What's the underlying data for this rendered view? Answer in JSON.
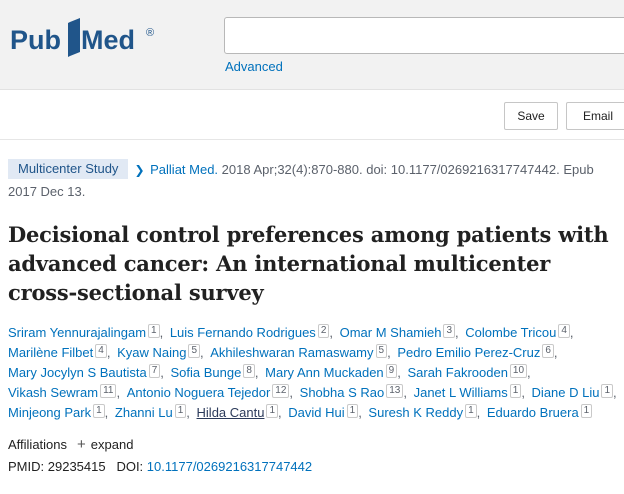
{
  "header": {
    "logo_text_pub": "Pub",
    "logo_text_med": "Med",
    "logo_reg": "®",
    "search": {
      "value": "",
      "placeholder": ""
    },
    "advanced_label": "Advanced"
  },
  "toolbar": {
    "save_label": "Save",
    "email_label": "Email"
  },
  "article": {
    "badge": "Multicenter Study",
    "journal": "Palliat Med.",
    "citation": " 2018 Apr;32(4):870-880. doi: 10.1177/0269216317747442. Epub 2017 Dec 13.",
    "title": "Decisional control preferences among patients with advanced cancer: An international multicenter cross-sectional survey",
    "authors": [
      {
        "name": "Sriram Yennurajalingam",
        "aff": "1"
      },
      {
        "name": "Luis Fernando Rodrigues",
        "aff": "2"
      },
      {
        "name": "Omar M Shamieh",
        "aff": "3"
      },
      {
        "name": "Colombe Tricou",
        "aff": "4"
      },
      {
        "name": "Marilène Filbet",
        "aff": "4"
      },
      {
        "name": "Kyaw Naing",
        "aff": "5"
      },
      {
        "name": "Akhileshwaran Ramaswamy",
        "aff": "5"
      },
      {
        "name": "Pedro Emilio Perez-Cruz",
        "aff": "6"
      },
      {
        "name": "Mary Jocylyn S Bautista",
        "aff": "7"
      },
      {
        "name": "Sofia Bunge",
        "aff": "8"
      },
      {
        "name": "Mary Ann Muckaden",
        "aff": "9"
      },
      {
        "name": "Sarah Fakrooden",
        "aff": "10"
      },
      {
        "name": "Vikash Sewram",
        "aff": "11"
      },
      {
        "name": "Antonio Noguera Tejedor",
        "aff": "12"
      },
      {
        "name": "Shobha S Rao",
        "aff": "13"
      },
      {
        "name": "Janet L Williams",
        "aff": "1"
      },
      {
        "name": "Diane D Liu",
        "aff": "1"
      },
      {
        "name": "Minjeong Park",
        "aff": "1"
      },
      {
        "name": "Zhanni Lu",
        "aff": "1"
      },
      {
        "name": "Hilda Cantu",
        "aff": "1"
      },
      {
        "name": "David Hui",
        "aff": "1"
      },
      {
        "name": "Suresh K Reddy",
        "aff": "1"
      },
      {
        "name": "Eduardo Bruera",
        "aff": "1"
      }
    ],
    "affiliations_label": "Affiliations",
    "expand_label": "expand",
    "pmid_label": "PMID:",
    "pmid_value": "29235415",
    "doi_label": "DOI:",
    "doi_value": "10.1177/0269216317747442"
  },
  "colors": {
    "brand_blue": "#20558a",
    "link_blue": "#0071bc",
    "badge_bg": "#e1e9f4"
  },
  "icons": {
    "logo": "pubmed-book-icon",
    "journal_arrow": "chevron-right-icon",
    "expand": "plus-icon"
  }
}
